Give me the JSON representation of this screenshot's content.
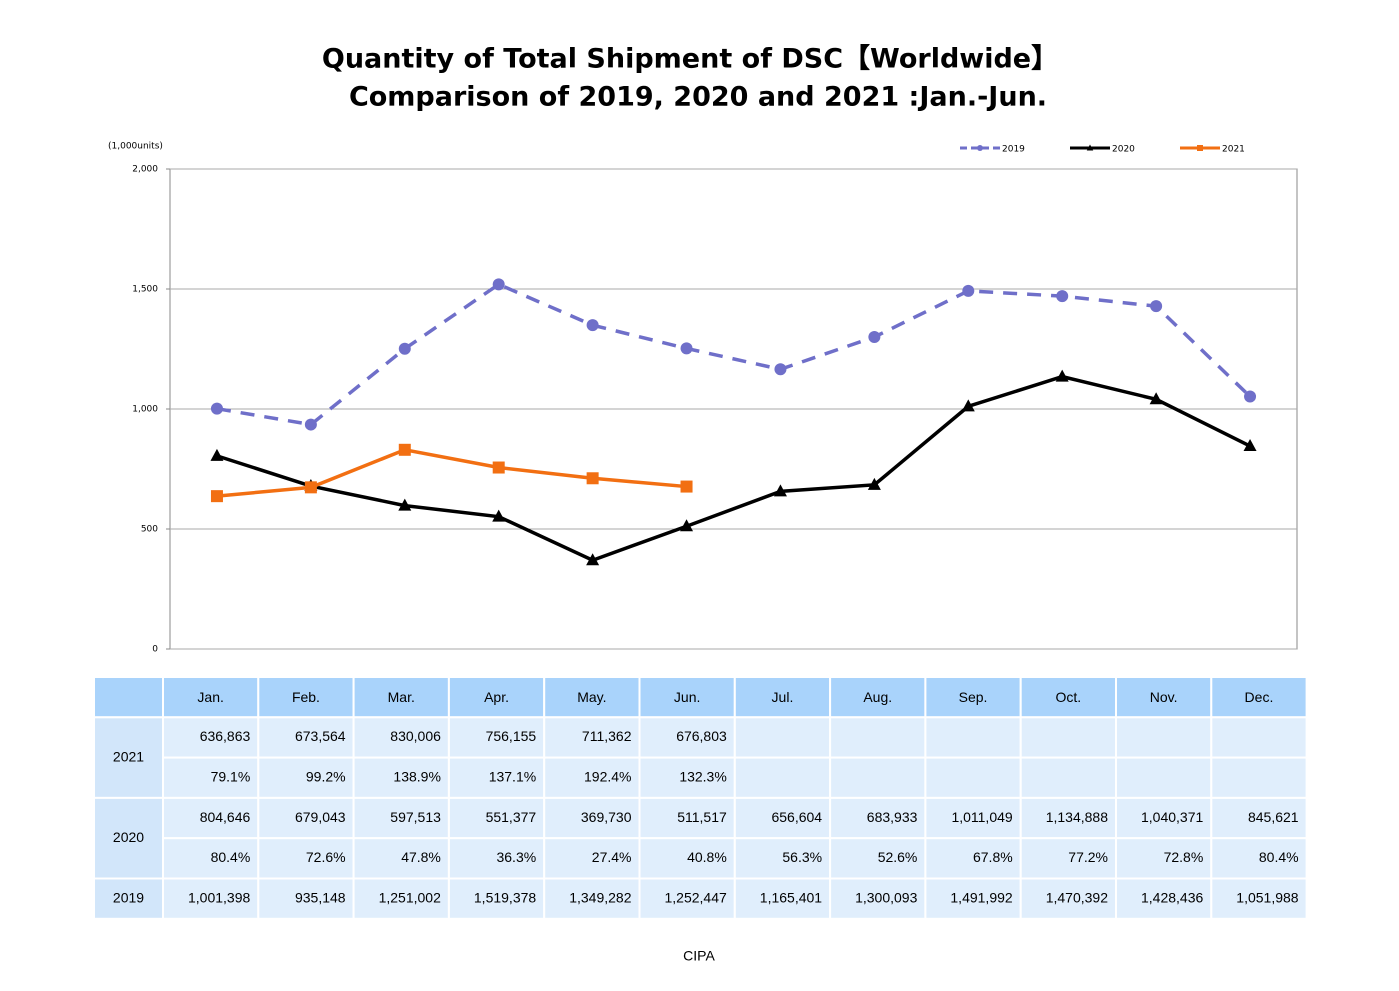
{
  "chart_data": {
    "type": "line",
    "title": "Quantity of Total Shipment of DSC【Worldwide】",
    "subtitle": "Comparison of 2019, 2020 and 2021 :Jan.-Jun.",
    "y_label": "(1,000units)",
    "categories": [
      "Jan.",
      "Feb.",
      "Mar.",
      "Apr.",
      "May.",
      "Jun.",
      "Jul.",
      "Aug.",
      "Sep.",
      "Oct.",
      "Nov.",
      "Dec."
    ],
    "ylim": [
      0,
      2000
    ],
    "yticks": [
      0,
      500,
      {
        "value": 1000,
        "label": "1,000"
      },
      {
        "value": 1500,
        "label": "1,500"
      },
      {
        "value": 2000,
        "label": "2,000"
      }
    ],
    "grid": true,
    "legend": "top-right",
    "series": [
      {
        "name": "2019",
        "color": "#6f6fc9",
        "dash": "dashed",
        "marker": "circle",
        "values": [
          1001.398,
          935.148,
          1251.002,
          1519.378,
          1349.282,
          1252.447,
          1165.401,
          1300.093,
          1491.992,
          1470.392,
          1428.436,
          1051.988
        ]
      },
      {
        "name": "2020",
        "color": "#000000",
        "dash": "solid",
        "marker": "triangle",
        "values": [
          804.646,
          679.043,
          597.513,
          551.377,
          369.73,
          511.517,
          656.604,
          683.933,
          1011.049,
          1134.888,
          1040.371,
          845.621
        ]
      },
      {
        "name": "2021",
        "color": "#f26f12",
        "dash": "solid",
        "marker": "square",
        "values": [
          636.863,
          673.564,
          830.006,
          756.155,
          711.362,
          676.803,
          null,
          null,
          null,
          null,
          null,
          null
        ]
      }
    ]
  },
  "table": {
    "rows": [
      {
        "label": "2021",
        "values": [
          "636,863",
          "673,564",
          "830,006",
          "756,155",
          "711,362",
          "676,803"
        ],
        "ratios": [
          "79.1%",
          "99.2%",
          "138.9%",
          "137.1%",
          "192.4%",
          "132.3%"
        ]
      },
      {
        "label": "2020",
        "values": [
          "804,646",
          "679,043",
          "597,513",
          "551,377",
          "369,730",
          "511,517",
          "656,604",
          "683,933",
          "1,011,049",
          "1,134,888",
          "1,040,371",
          "845,621"
        ],
        "ratios": [
          "80.4%",
          "72.6%",
          "47.8%",
          "36.3%",
          "27.4%",
          "40.8%",
          "56.3%",
          "52.6%",
          "67.8%",
          "77.2%",
          "72.8%",
          "80.4%"
        ]
      },
      {
        "label": "2019",
        "values": [
          "1,001,398",
          "935,148",
          "1,251,002",
          "1,519,378",
          "1,349,282",
          "1,252,447",
          "1,165,401",
          "1,300,093",
          "1,491,992",
          "1,470,392",
          "1,428,436",
          "1,051,988"
        ]
      }
    ]
  },
  "source": "CIPA"
}
